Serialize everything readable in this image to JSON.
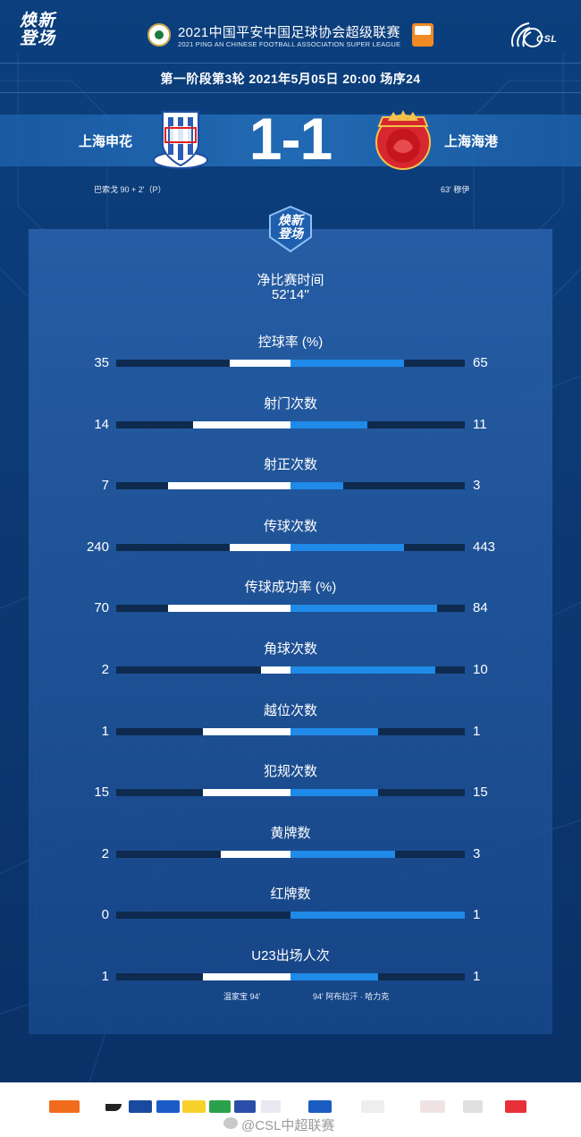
{
  "header": {
    "brand_line1": "焕新",
    "brand_line2": "登场",
    "title_cn": "2021中国平安中国足球协会超级联赛",
    "title_en": "2021 PING AN CHINESE FOOTBALL ASSOCIATION SUPER LEAGUE",
    "csl_text": "CSL"
  },
  "match": {
    "info": "第一阶段第3轮  2021年5月05日 20:00 场序24",
    "home_team": "上海申花",
    "away_team": "上海海港",
    "score": "1-1",
    "home_scorer": "巴索戈  90 + 2'（P）",
    "away_scorer": "63'  穆伊"
  },
  "badge": {
    "line1": "焕新",
    "line2": "登场"
  },
  "net_time": {
    "label": "净比赛时间",
    "value": "52'14''"
  },
  "stats": [
    {
      "label": "控球率 (%)",
      "home": "35",
      "away": "65",
      "home_frac": 0.35,
      "away_frac": 0.65
    },
    {
      "label": "射门次数",
      "home": "14",
      "away": "11",
      "home_frac": 0.56,
      "away_frac": 0.44
    },
    {
      "label": "射正次数",
      "home": "7",
      "away": "3",
      "home_frac": 0.7,
      "away_frac": 0.3
    },
    {
      "label": "传球次数",
      "home": "240",
      "away": "443",
      "home_frac": 0.35,
      "away_frac": 0.65
    },
    {
      "label": "传球成功率 (%)",
      "home": "70",
      "away": "84",
      "home_frac": 0.7,
      "away_frac": 0.84
    },
    {
      "label": "角球次数",
      "home": "2",
      "away": "10",
      "home_frac": 0.17,
      "away_frac": 0.83
    },
    {
      "label": "越位次数",
      "home": "1",
      "away": "1",
      "home_frac": 0.5,
      "away_frac": 0.5
    },
    {
      "label": "犯规次数",
      "home": "15",
      "away": "15",
      "home_frac": 0.5,
      "away_frac": 0.5
    },
    {
      "label": "黄牌数",
      "home": "2",
      "away": "3",
      "home_frac": 0.4,
      "away_frac": 0.6
    },
    {
      "label": "红牌数",
      "home": "0",
      "away": "1",
      "home_frac": 0.0,
      "away_frac": 1.0
    },
    {
      "label": "U23出场人次",
      "home": "1",
      "away": "1",
      "home_frac": 0.5,
      "away_frac": 0.5
    }
  ],
  "u23_subs": {
    "home": "温家宝    94'",
    "away": "94'    阿布拉汗 · 哈力克"
  },
  "footer": {
    "watermark": "@CSL中超联赛"
  },
  "colors": {
    "home_bar": "#ffffff",
    "away_bar": "#1f8ae8",
    "track": "#0e2a4e",
    "background": "#0b3f7d"
  }
}
